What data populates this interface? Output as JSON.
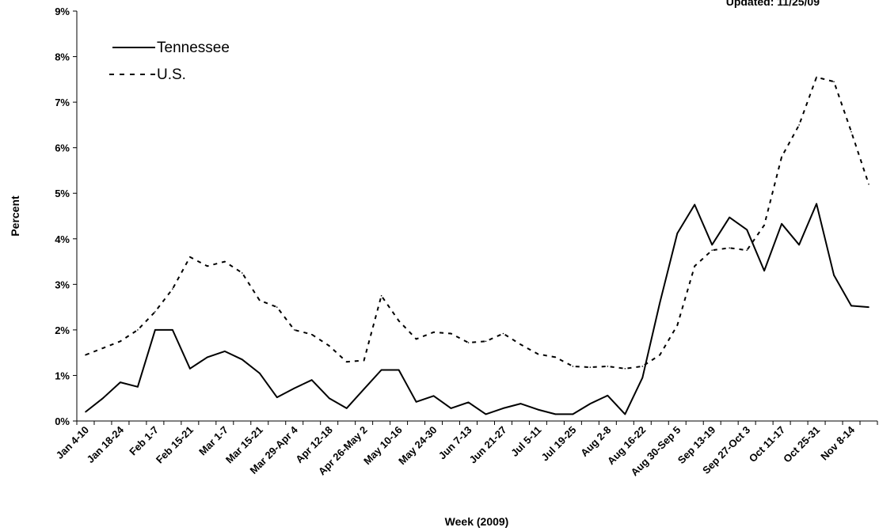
{
  "note": "Updated: 11/25/09",
  "chart_data": {
    "type": "line",
    "title": "",
    "xlabel": "Week (2009)",
    "ylabel": "Percent",
    "ylim": [
      0,
      9
    ],
    "yticks": [
      "0%",
      "1%",
      "2%",
      "3%",
      "4%",
      "5%",
      "6%",
      "7%",
      "8%",
      "9%"
    ],
    "grid": false,
    "legend_position": "top-left",
    "x_tick_labels": [
      "Jan 4-10",
      "Jan 18-24",
      "Feb 1-7",
      "Feb 15-21",
      "Mar 1-7",
      "Mar 15-21",
      "Mar 29-Apr 4",
      "Apr 12-18",
      "Apr 26-May 2",
      "May 10-16",
      "May 24-30",
      "Jun 7-13",
      "Jun 21-27",
      "Jul 5-11",
      "Jul 19-25",
      "Aug 2-8",
      "Aug 16-22",
      "Aug 30-Sep 5",
      "Sep 13-19",
      "Sep 27-Oct 3",
      "Oct 11-17",
      "Oct 25-31",
      "Nov 8-14"
    ],
    "series": [
      {
        "name": "Tennessee",
        "style": "solid",
        "color": "#000000",
        "values": [
          0.2,
          0.5,
          0.85,
          0.75,
          2.0,
          2.0,
          1.15,
          1.4,
          1.53,
          1.35,
          1.05,
          0.52,
          0.72,
          0.9,
          0.5,
          0.28,
          0.7,
          1.12,
          1.12,
          0.42,
          0.55,
          0.28,
          0.41,
          0.15,
          0.28,
          0.38,
          0.25,
          0.15,
          0.15,
          0.38,
          0.56,
          0.15,
          0.95,
          2.6,
          4.12,
          4.75,
          3.87,
          4.47,
          4.2,
          3.3,
          4.33,
          3.87,
          4.77,
          3.2,
          2.53,
          2.5
        ]
      },
      {
        "name": "U.S.",
        "style": "dashed",
        "color": "#000000",
        "values": [
          1.45,
          1.6,
          1.75,
          2.0,
          2.4,
          2.9,
          3.6,
          3.4,
          3.5,
          3.25,
          2.65,
          2.5,
          2.0,
          1.9,
          1.65,
          1.3,
          1.33,
          2.75,
          2.2,
          1.8,
          1.95,
          1.92,
          1.72,
          1.75,
          1.92,
          1.68,
          1.47,
          1.4,
          1.2,
          1.18,
          1.2,
          1.15,
          1.2,
          1.45,
          2.1,
          3.4,
          3.75,
          3.8,
          3.75,
          4.3,
          5.8,
          6.5,
          7.55,
          7.45,
          6.35,
          5.2
        ]
      }
    ]
  }
}
